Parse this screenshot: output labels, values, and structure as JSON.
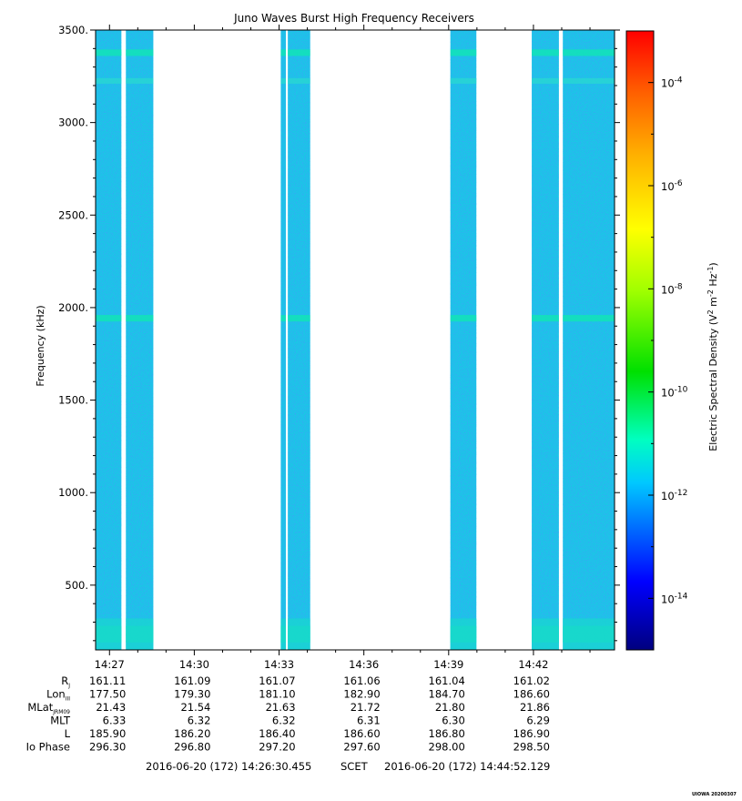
{
  "chart_data": {
    "type": "heatmap",
    "title": "Juno Waves Burst High Frequency Receivers",
    "ylabel": "Frequency (kHz)",
    "y_ticks": [
      "500.",
      "1000.",
      "1500.",
      "2000.",
      "2500.",
      "3000.",
      "3500."
    ],
    "y_tick_values": [
      500,
      1000,
      1500,
      2000,
      2500,
      3000,
      3500
    ],
    "ylim": [
      150,
      3500
    ],
    "x_ticks": [
      "14:27",
      "14:30",
      "14:33",
      "14:36",
      "14:39",
      "14:42"
    ],
    "x_tick_minutes": [
      27,
      30,
      33,
      36,
      39,
      42
    ],
    "xlim_minutes": [
      26.508,
      44.869
    ],
    "data_segments_minutes": [
      [
        26.508,
        27.42
      ],
      [
        27.58,
        28.55
      ],
      [
        33.06,
        33.24
      ],
      [
        33.31,
        34.1
      ],
      [
        39.06,
        39.98
      ],
      [
        41.94,
        42.9
      ],
      [
        43.04,
        44.869
      ]
    ],
    "color_scale": {
      "label": "Electric Spectral Density (V",
      "label_sup1": "2",
      "label_mid": " m",
      "label_sup2": "-2",
      "label_mid2": " Hz",
      "label_sup3": "-1",
      "label_end": ")",
      "log": true,
      "range_exponent": [
        -15,
        -3
      ],
      "tick_base": "10",
      "tick_exponents": [
        "-14",
        "-12",
        "-10",
        "-8",
        "-6",
        "-4"
      ],
      "tick_values": [
        -14,
        -12,
        -10,
        -8,
        -6,
        -4
      ],
      "background_level_exponent": -12
    },
    "grid": false
  },
  "ephemeris": {
    "rows": [
      {
        "label": "R",
        "sub": "J",
        "values": [
          "161.11",
          "161.09",
          "161.07",
          "161.06",
          "161.04",
          "161.02"
        ]
      },
      {
        "label": "Lon",
        "sub": "III",
        "values": [
          "177.50",
          "179.30",
          "181.10",
          "182.90",
          "184.70",
          "186.60"
        ]
      },
      {
        "label": "MLat",
        "sub": "JRM09",
        "values": [
          "21.43",
          "21.54",
          "21.63",
          "21.72",
          "21.80",
          "21.86"
        ]
      },
      {
        "label": "MLT",
        "sub": "",
        "values": [
          "6.33",
          "6.32",
          "6.32",
          "6.31",
          "6.30",
          "6.29"
        ]
      },
      {
        "label": "L",
        "sub": "",
        "values": [
          "185.90",
          "186.20",
          "186.40",
          "186.60",
          "186.80",
          "186.90"
        ]
      },
      {
        "label": "Io Phase",
        "sub": "",
        "values": [
          "296.30",
          "296.80",
          "297.20",
          "297.60",
          "298.00",
          "298.50"
        ]
      }
    ]
  },
  "time_range": {
    "start": "2016-06-20 (172) 14:26:30.455",
    "mid": "SCET",
    "end": "2016-06-20 (172) 14:44:52.129"
  },
  "footer": {
    "stamp": "UIOWA 20200307"
  }
}
